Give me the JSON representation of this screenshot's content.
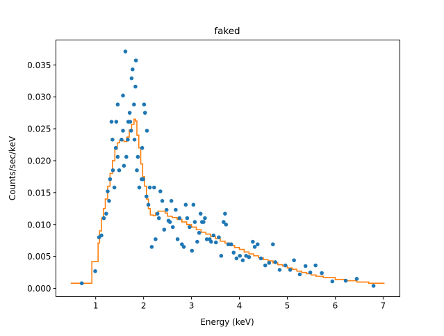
{
  "chart_data": {
    "type": "scatter",
    "title": "faked",
    "xlabel": "Energy (keV)",
    "ylabel": "Counts/sec/keV",
    "xlim": [
      0.17,
      7.35
    ],
    "ylim": [
      -0.0013,
      0.0389
    ],
    "xticks": [
      1,
      2,
      3,
      4,
      5,
      6,
      7
    ],
    "xtick_labels": [
      "1",
      "2",
      "3",
      "4",
      "5",
      "6",
      "7"
    ],
    "yticks": [
      0,
      0.005,
      0.01,
      0.015,
      0.02,
      0.025,
      0.03,
      0.035
    ],
    "ytick_labels": [
      "0.000",
      "0.005",
      "0.010",
      "0.015",
      "0.020",
      "0.025",
      "0.030",
      "0.035"
    ],
    "grid": false,
    "colors": {
      "data": "#1f77b4",
      "model": "#ff7f0e"
    },
    "data_points": [
      [
        0.71,
        0.0008
      ],
      [
        0.99,
        0.0027
      ],
      [
        1.07,
        0.008
      ],
      [
        1.12,
        0.0083
      ],
      [
        1.17,
        0.011
      ],
      [
        1.22,
        0.0117
      ],
      [
        1.25,
        0.0152
      ],
      [
        1.28,
        0.0137
      ],
      [
        1.3,
        0.0171
      ],
      [
        1.36,
        0.0185
      ],
      [
        1.39,
        0.0158
      ],
      [
        1.35,
        0.0233
      ],
      [
        1.33,
        0.0261
      ],
      [
        1.43,
        0.0261
      ],
      [
        1.42,
        0.022
      ],
      [
        1.46,
        0.0206
      ],
      [
        1.49,
        0.0185
      ],
      [
        1.54,
        0.0233
      ],
      [
        1.57,
        0.0247
      ],
      [
        1.57,
        0.0302
      ],
      [
        1.46,
        0.0288
      ],
      [
        1.59,
        0.0192
      ],
      [
        1.64,
        0.0206
      ],
      [
        1.62,
        0.0371
      ],
      [
        1.67,
        0.0233
      ],
      [
        1.68,
        0.0261
      ],
      [
        1.71,
        0.0275
      ],
      [
        1.72,
        0.0261
      ],
      [
        1.74,
        0.0247
      ],
      [
        1.75,
        0.0329
      ],
      [
        1.77,
        0.0343
      ],
      [
        1.8,
        0.0288
      ],
      [
        1.81,
        0.0233
      ],
      [
        1.83,
        0.0316
      ],
      [
        1.84,
        0.0357
      ],
      [
        1.86,
        0.0185
      ],
      [
        1.88,
        0.0206
      ],
      [
        1.91,
        0.0158
      ],
      [
        1.96,
        0.0171
      ],
      [
        1.99,
        0.0171
      ],
      [
        1.97,
        0.022
      ],
      [
        2.01,
        0.0288
      ],
      [
        2.03,
        0.0275
      ],
      [
        2.06,
        0.0144
      ],
      [
        2.07,
        0.0247
      ],
      [
        2.1,
        0.0131
      ],
      [
        2.13,
        0.0158
      ],
      [
        2.17,
        0.0065
      ],
      [
        2.22,
        0.0158
      ],
      [
        2.25,
        0.0077
      ],
      [
        2.29,
        0.0117
      ],
      [
        2.32,
        0.011
      ],
      [
        2.35,
        0.0152
      ],
      [
        2.39,
        0.0137
      ],
      [
        2.43,
        0.0092
      ],
      [
        2.48,
        0.0123
      ],
      [
        2.52,
        0.0106
      ],
      [
        2.55,
        0.0104
      ],
      [
        2.58,
        0.0137
      ],
      [
        2.61,
        0.0096
      ],
      [
        2.67,
        0.0123
      ],
      [
        2.71,
        0.0077
      ],
      [
        2.75,
        0.011
      ],
      [
        2.8,
        0.0069
      ],
      [
        2.84,
        0.0065
      ],
      [
        2.88,
        0.0131
      ],
      [
        2.91,
        0.011
      ],
      [
        2.96,
        0.0096
      ],
      [
        3.01,
        0.0059
      ],
      [
        3.04,
        0.0131
      ],
      [
        3.07,
        0.0104
      ],
      [
        3.12,
        0.0073
      ],
      [
        3.16,
        0.0087
      ],
      [
        3.19,
        0.0117
      ],
      [
        3.22,
        0.0104
      ],
      [
        3.25,
        0.0104
      ],
      [
        3.28,
        0.011
      ],
      [
        3.32,
        0.0077
      ],
      [
        3.38,
        0.0077
      ],
      [
        3.41,
        0.0073
      ],
      [
        3.46,
        0.0083
      ],
      [
        3.51,
        0.0072
      ],
      [
        3.57,
        0.008
      ],
      [
        3.62,
        0.0051
      ],
      [
        3.67,
        0.0104
      ],
      [
        3.7,
        0.0117
      ],
      [
        3.72,
        0.01
      ],
      [
        3.77,
        0.0069
      ],
      [
        3.83,
        0.0069
      ],
      [
        3.88,
        0.0056
      ],
      [
        3.94,
        0.0047
      ],
      [
        4.01,
        0.0051
      ],
      [
        4.07,
        0.0044
      ],
      [
        4.14,
        0.0051
      ],
      [
        4.2,
        0.0049
      ],
      [
        4.28,
        0.0073
      ],
      [
        4.32,
        0.0065
      ],
      [
        4.38,
        0.0069
      ],
      [
        4.45,
        0.0047
      ],
      [
        4.54,
        0.0036
      ],
      [
        4.62,
        0.004
      ],
      [
        4.7,
        0.0069
      ],
      [
        4.75,
        0.0041
      ],
      [
        4.84,
        0.0029
      ],
      [
        4.96,
        0.0036
      ],
      [
        5.06,
        0.0029
      ],
      [
        5.14,
        0.0044
      ],
      [
        5.26,
        0.0022
      ],
      [
        5.38,
        0.0035
      ],
      [
        5.48,
        0.0025
      ],
      [
        5.59,
        0.0036
      ],
      [
        5.72,
        0.0024
      ],
      [
        5.94,
        0.0011
      ],
      [
        6.22,
        0.0012
      ],
      [
        6.45,
        0.0015
      ],
      [
        6.8,
        0.0004
      ]
    ],
    "model_step": [
      [
        0.48,
        0.0008
      ],
      [
        0.92,
        0.0042
      ],
      [
        1.05,
        0.0071
      ],
      [
        1.08,
        0.009
      ],
      [
        1.12,
        0.011
      ],
      [
        1.16,
        0.0125
      ],
      [
        1.2,
        0.014
      ],
      [
        1.25,
        0.016
      ],
      [
        1.3,
        0.018
      ],
      [
        1.35,
        0.02
      ],
      [
        1.4,
        0.0218
      ],
      [
        1.45,
        0.0228
      ],
      [
        1.5,
        0.0232
      ],
      [
        1.55,
        0.0231
      ],
      [
        1.6,
        0.023
      ],
      [
        1.65,
        0.0237
      ],
      [
        1.7,
        0.0248
      ],
      [
        1.75,
        0.0257
      ],
      [
        1.8,
        0.0265
      ],
      [
        1.83,
        0.0262
      ],
      [
        1.86,
        0.024
      ],
      [
        1.9,
        0.022
      ],
      [
        1.94,
        0.0195
      ],
      [
        1.98,
        0.0175
      ],
      [
        2.02,
        0.016
      ],
      [
        2.06,
        0.014
      ],
      [
        2.1,
        0.0125
      ],
      [
        2.14,
        0.0115
      ],
      [
        2.2,
        0.0114
      ],
      [
        2.25,
        0.0118
      ],
      [
        2.3,
        0.0121
      ],
      [
        2.4,
        0.0121
      ],
      [
        2.45,
        0.0118
      ],
      [
        2.5,
        0.0113
      ],
      [
        2.6,
        0.0111
      ],
      [
        2.7,
        0.0108
      ],
      [
        2.8,
        0.0104
      ],
      [
        2.9,
        0.01
      ],
      [
        3.0,
        0.0096
      ],
      [
        3.1,
        0.0092
      ],
      [
        3.2,
        0.0088
      ],
      [
        3.3,
        0.0085
      ],
      [
        3.4,
        0.0081
      ],
      [
        3.5,
        0.0078
      ],
      [
        3.6,
        0.0074
      ],
      [
        3.7,
        0.0071
      ],
      [
        3.8,
        0.0067
      ],
      [
        3.9,
        0.0064
      ],
      [
        4.0,
        0.0061
      ],
      [
        4.1,
        0.0057
      ],
      [
        4.2,
        0.0054
      ],
      [
        4.3,
        0.0051
      ],
      [
        4.4,
        0.0048
      ],
      [
        4.5,
        0.0045
      ],
      [
        4.6,
        0.0043
      ],
      [
        4.7,
        0.004
      ],
      [
        4.8,
        0.0037
      ],
      [
        4.9,
        0.0035
      ],
      [
        5.0,
        0.0032
      ],
      [
        5.1,
        0.003
      ],
      [
        5.2,
        0.0027
      ],
      [
        5.3,
        0.0025
      ],
      [
        5.4,
        0.0023
      ],
      [
        5.5,
        0.0021
      ],
      [
        5.6,
        0.0019
      ],
      [
        5.75,
        0.0017
      ],
      [
        6.0,
        0.0014
      ],
      [
        6.2,
        0.0012
      ],
      [
        6.45,
        0.001
      ],
      [
        6.7,
        0.0008
      ],
      [
        7.03,
        0.0008
      ]
    ]
  }
}
